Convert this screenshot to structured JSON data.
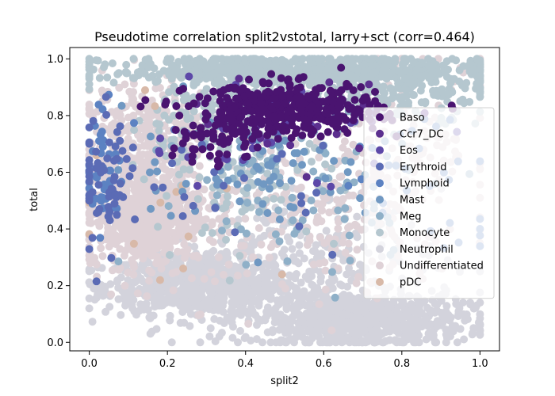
{
  "chart_data": {
    "type": "scatter",
    "title": "Pseudotime correlation split2vstotal, larry+sct (corr=0.464)",
    "xlabel": "split2",
    "ylabel": "total",
    "xlim": [
      -0.05,
      1.05
    ],
    "ylim": [
      -0.03,
      1.04
    ],
    "xticks": [
      0.0,
      0.2,
      0.4,
      0.6,
      0.8,
      1.0
    ],
    "yticks": [
      0.0,
      0.2,
      0.4,
      0.6,
      0.8,
      1.0
    ],
    "xtick_labels": [
      "0.0",
      "0.2",
      "0.4",
      "0.6",
      "0.8",
      "1.0"
    ],
    "ytick_labels": [
      "0.0",
      "0.2",
      "0.4",
      "0.6",
      "0.8",
      "1.0"
    ],
    "grid": false,
    "legend_placement": "right",
    "series": [
      {
        "name": "Baso",
        "color": "#4a1470",
        "clusters": [
          {
            "cx": 0.5,
            "cy": 0.82,
            "sx": 0.12,
            "sy": 0.045,
            "n": 420
          },
          {
            "cx": 0.32,
            "cy": 0.7,
            "sx": 0.06,
            "sy": 0.04,
            "n": 40
          }
        ]
      },
      {
        "name": "Ccr7_DC",
        "color": "#5c2f8f",
        "clusters": [
          {
            "cx": 0.55,
            "cy": 0.78,
            "sx": 0.15,
            "sy": 0.08,
            "n": 25
          }
        ]
      },
      {
        "name": "Eos",
        "color": "#5d48a8",
        "clusters": [
          {
            "cx": 0.45,
            "cy": 0.75,
            "sx": 0.18,
            "sy": 0.1,
            "n": 35
          }
        ]
      },
      {
        "name": "Erythroid",
        "color": "#5b6bb5",
        "clusters": [
          {
            "cx": 0.05,
            "cy": 0.55,
            "sx": 0.04,
            "sy": 0.12,
            "n": 60
          },
          {
            "cx": 0.35,
            "cy": 0.6,
            "sx": 0.15,
            "sy": 0.12,
            "n": 30
          }
        ]
      },
      {
        "name": "Lymphoid",
        "color": "#5c82c2",
        "clusters": [
          {
            "cx": 0.04,
            "cy": 0.6,
            "sx": 0.03,
            "sy": 0.1,
            "n": 50
          },
          {
            "cx": 0.85,
            "cy": 0.55,
            "sx": 0.12,
            "sy": 0.15,
            "n": 30
          }
        ]
      },
      {
        "name": "Mast",
        "color": "#7098c2",
        "clusters": [
          {
            "cx": 0.42,
            "cy": 0.62,
            "sx": 0.16,
            "sy": 0.1,
            "n": 70
          }
        ]
      },
      {
        "name": "Meg",
        "color": "#8fb0c8",
        "clusters": [
          {
            "cx": 0.55,
            "cy": 0.55,
            "sx": 0.2,
            "sy": 0.15,
            "n": 90
          }
        ]
      },
      {
        "name": "Monocyte",
        "color": "#b5c7cf",
        "clusters": [
          {
            "cx": 0.55,
            "cy": 0.96,
            "sx": 0.25,
            "sy": 0.025,
            "n": 700
          },
          {
            "cx": 0.75,
            "cy": 0.88,
            "sx": 0.15,
            "sy": 0.05,
            "n": 200
          },
          {
            "cx": 0.3,
            "cy": 0.8,
            "sx": 0.1,
            "sy": 0.08,
            "n": 150
          },
          {
            "cx": 0.4,
            "cy": 0.55,
            "sx": 0.12,
            "sy": 0.1,
            "n": 80
          }
        ]
      },
      {
        "name": "Neutrophil",
        "color": "#d3d3dc",
        "clusters": [
          {
            "cx": 0.28,
            "cy": 0.2,
            "sx": 0.12,
            "sy": 0.05,
            "n": 700
          },
          {
            "cx": 0.68,
            "cy": 0.08,
            "sx": 0.14,
            "sy": 0.05,
            "n": 800
          },
          {
            "cx": 0.5,
            "cy": 0.3,
            "sx": 0.2,
            "sy": 0.12,
            "n": 300
          }
        ]
      },
      {
        "name": "Undifferentiated",
        "color": "#dfd2d7",
        "clusters": [
          {
            "cx": 0.14,
            "cy": 0.47,
            "sx": 0.08,
            "sy": 0.1,
            "n": 700
          },
          {
            "cx": 0.15,
            "cy": 0.75,
            "sx": 0.08,
            "sy": 0.1,
            "n": 250
          },
          {
            "cx": 0.55,
            "cy": 0.45,
            "sx": 0.2,
            "sy": 0.15,
            "n": 250
          },
          {
            "cx": 0.8,
            "cy": 0.7,
            "sx": 0.12,
            "sy": 0.15,
            "n": 150
          }
        ]
      },
      {
        "name": "pDC",
        "color": "#d8b9a8",
        "clusters": [
          {
            "cx": 0.2,
            "cy": 0.6,
            "sx": 0.15,
            "sy": 0.2,
            "n": 15
          }
        ]
      }
    ]
  }
}
